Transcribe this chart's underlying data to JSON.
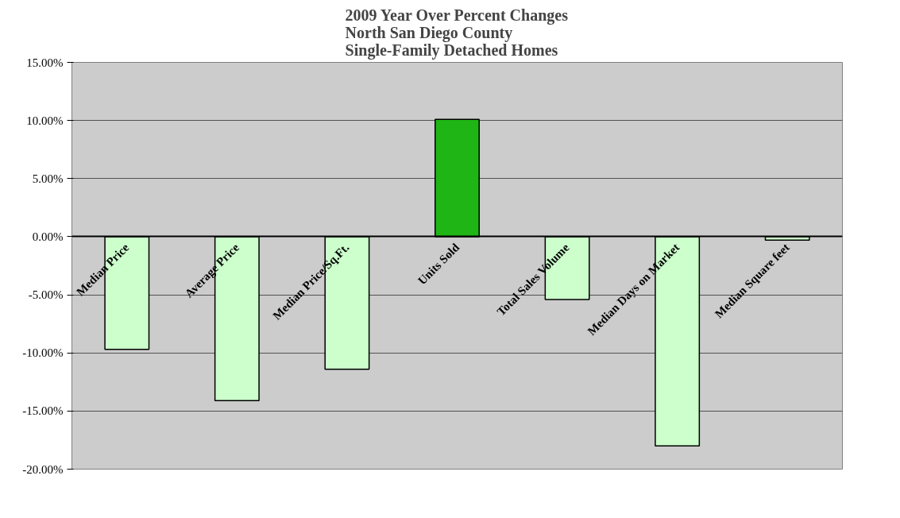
{
  "chart_data": {
    "type": "bar",
    "title": "2009 Year Over Percent Changes\nNorth San Diego County\nSingle-Family Detached Homes",
    "categories": [
      "Median Price",
      "Average Price",
      "Median Price/Sq.Ft.",
      "Units Sold",
      "Total Sales Volume",
      "Median Days on Market",
      "Median Square feet"
    ],
    "values": [
      -9.7,
      -14.1,
      -11.4,
      10.1,
      -5.4,
      -18.0,
      -0.3
    ],
    "colors": [
      "#ccffcc",
      "#ccffcc",
      "#ccffcc",
      "#1fb515",
      "#ccffcc",
      "#ccffcc",
      "#ccffcc"
    ],
    "ylim": [
      -20,
      15
    ],
    "yticks": [
      {
        "value": -20,
        "label": "-20.00%"
      },
      {
        "value": -15,
        "label": "-15.00%"
      },
      {
        "value": -10,
        "label": "-10.00%"
      },
      {
        "value": -5,
        "label": "-5.00%"
      },
      {
        "value": 0,
        "label": "0.00%"
      },
      {
        "value": 5,
        "label": "5.00%"
      },
      {
        "value": 10,
        "label": "10.00%"
      },
      {
        "value": 15,
        "label": "15.00%"
      }
    ],
    "grid": "y"
  }
}
